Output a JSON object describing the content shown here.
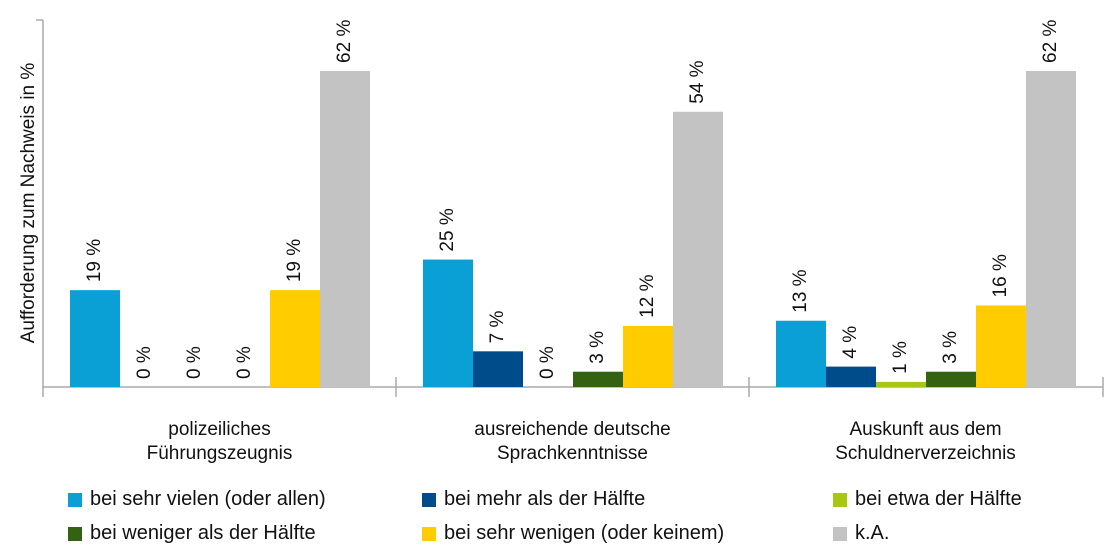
{
  "chart_data": {
    "type": "bar",
    "y_label": "Aufforderung zum Nachweis in %",
    "categories": [
      "polizeiliches\nFührungszeugnis",
      "ausreichende deutsche\nSprachkenntnisse",
      "Auskunft aus dem\nSchuldnerverzeichnis"
    ],
    "ylim": [
      0,
      72
    ],
    "series": [
      {
        "name": "bei sehr vielen (oder allen)",
        "color": "#0a9fd5",
        "values": [
          19,
          25,
          13
        ],
        "value_labels": [
          "19 %",
          "25 %",
          "13 %"
        ]
      },
      {
        "name": "bei mehr als der Hälfte",
        "color": "#004b8a",
        "values": [
          0,
          7,
          4
        ],
        "value_labels": [
          "0 %",
          "7 %",
          "4 %"
        ]
      },
      {
        "name": "bei etwa der Hälfte",
        "color": "#a9c613",
        "values": [
          0,
          0,
          1
        ],
        "value_labels": [
          "0 %",
          "0 %",
          "1 %"
        ]
      },
      {
        "name": "bei weniger als der Hälfte",
        "color": "#336312",
        "values": [
          0,
          3,
          3
        ],
        "value_labels": [
          "0 %",
          "3 %",
          "3 %"
        ]
      },
      {
        "name": "bei sehr wenigen (oder keinem)",
        "color": "#ffcc00",
        "values": [
          19,
          12,
          16
        ],
        "value_labels": [
          "19 %",
          "12 %",
          "16 %"
        ]
      },
      {
        "name": "k.A.",
        "color": "#c3c3c3",
        "values": [
          62,
          54,
          62
        ],
        "value_labels": [
          "62 %",
          "54 %",
          "62 %"
        ]
      }
    ]
  }
}
